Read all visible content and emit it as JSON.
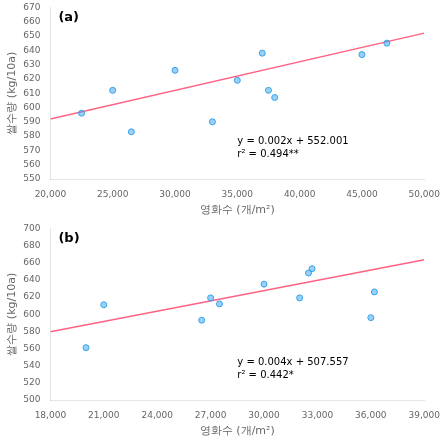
{
  "chart_data": [
    {
      "type": "scatter",
      "title": "(a)",
      "xlabel": "영화수 (개/m²)",
      "ylabel": "쌀수량 (kg/10a)",
      "xlim": [
        20000,
        50000
      ],
      "ylim": [
        550,
        670
      ],
      "xticks": [
        {
          "value": 20000,
          "label": "20,000"
        },
        {
          "value": 25000,
          "label": "25,000"
        },
        {
          "value": 30000,
          "label": "30,000"
        },
        {
          "value": 35000,
          "label": "35,000"
        },
        {
          "value": 40000,
          "label": "40,000"
        },
        {
          "value": 45000,
          "label": "45,000"
        },
        {
          "value": 50000,
          "label": "50,000"
        }
      ],
      "yticks": [
        550,
        560,
        570,
        580,
        590,
        600,
        610,
        620,
        630,
        640,
        650,
        660,
        670
      ],
      "grid": false,
      "annotations": [
        "y = 0.002x + 552.001",
        "r² = 0.494**"
      ],
      "series": [
        {
          "type": "scatter",
          "x": [
            22500,
            25000,
            26500,
            30000,
            33000,
            35000,
            37000,
            37500,
            38000,
            45000,
            47000
          ],
          "values": [
            596,
            612,
            583,
            626,
            590,
            619,
            638,
            612,
            607,
            637,
            645
          ]
        },
        {
          "type": "line",
          "x": [
            20000,
            50000
          ],
          "values": [
            592.001,
            652.001
          ]
        }
      ]
    },
    {
      "type": "scatter",
      "title": "(b)",
      "xlabel": "영화수 (개/m²)",
      "ylabel": "쌀수량 (kg/10a)",
      "xlim": [
        18000,
        39000
      ],
      "ylim": [
        500,
        700
      ],
      "xticks": [
        {
          "value": 18000,
          "label": "18,000"
        },
        {
          "value": 21000,
          "label": "21,000"
        },
        {
          "value": 24000,
          "label": "24,000"
        },
        {
          "value": 27000,
          "label": "27,000"
        },
        {
          "value": 30000,
          "label": "30,000"
        },
        {
          "value": 33000,
          "label": "33,000"
        },
        {
          "value": 36000,
          "label": "36,000"
        },
        {
          "value": 39000,
          "label": "39,000"
        }
      ],
      "yticks": [
        500,
        520,
        540,
        560,
        580,
        600,
        620,
        640,
        660,
        680,
        700
      ],
      "grid": false,
      "annotations": [
        "y = 0.004x + 507.557",
        "r² = 0.442*"
      ],
      "series": [
        {
          "type": "scatter",
          "x": [
            20000,
            21000,
            26500,
            27000,
            27500,
            30000,
            32000,
            32500,
            32700,
            36000,
            36200
          ],
          "values": [
            561,
            611,
            593,
            619,
            612,
            635,
            619,
            648,
            653,
            596,
            626
          ]
        },
        {
          "type": "line",
          "x": [
            18000,
            39000
          ],
          "values": [
            579.557,
            663.557
          ]
        }
      ]
    }
  ]
}
